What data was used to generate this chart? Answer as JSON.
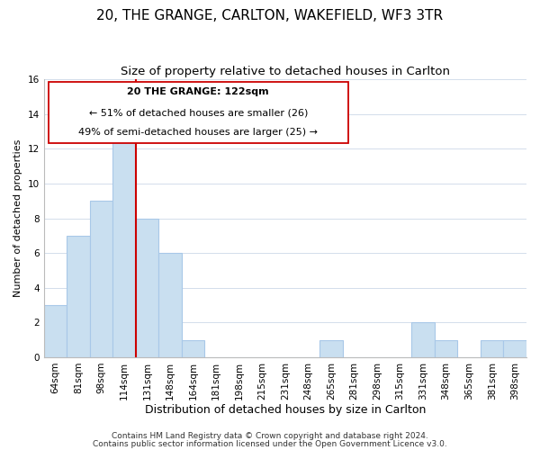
{
  "title": "20, THE GRANGE, CARLTON, WAKEFIELD, WF3 3TR",
  "subtitle": "Size of property relative to detached houses in Carlton",
  "xlabel": "Distribution of detached houses by size in Carlton",
  "ylabel": "Number of detached properties",
  "categories": [
    "64sqm",
    "81sqm",
    "98sqm",
    "114sqm",
    "131sqm",
    "148sqm",
    "164sqm",
    "181sqm",
    "198sqm",
    "215sqm",
    "231sqm",
    "248sqm",
    "265sqm",
    "281sqm",
    "298sqm",
    "315sqm",
    "331sqm",
    "348sqm",
    "365sqm",
    "381sqm",
    "398sqm"
  ],
  "values": [
    3,
    7,
    9,
    13,
    8,
    6,
    1,
    0,
    0,
    0,
    0,
    0,
    1,
    0,
    0,
    0,
    2,
    1,
    0,
    1,
    1
  ],
  "bar_color": "#c9dff0",
  "bar_edge_color": "#a8c8e8",
  "redline_x": 3.5,
  "redline_color": "#cc0000",
  "annotation_text_line1": "20 THE GRANGE: 122sqm",
  "annotation_text_line2": "← 51% of detached houses are smaller (26)",
  "annotation_text_line3": "49% of semi-detached houses are larger (25) →",
  "annotation_box_color": "white",
  "annotation_box_edge": "#cc0000",
  "ylim": [
    0,
    16
  ],
  "yticks": [
    0,
    2,
    4,
    6,
    8,
    10,
    12,
    14,
    16
  ],
  "footer1": "Contains HM Land Registry data © Crown copyright and database right 2024.",
  "footer2": "Contains public sector information licensed under the Open Government Licence v3.0.",
  "bar_width": 1.0,
  "title_fontsize": 11,
  "subtitle_fontsize": 9.5,
  "xlabel_fontsize": 9,
  "ylabel_fontsize": 8,
  "tick_fontsize": 7.5,
  "annotation_fontsize": 8,
  "footer_fontsize": 6.5
}
